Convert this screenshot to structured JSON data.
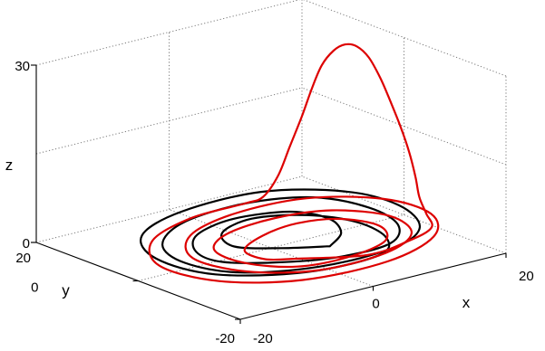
{
  "chart_data": {
    "type": "line",
    "projection": "3d",
    "title": "",
    "xlabel": "x",
    "ylabel": "y",
    "zlabel": "z",
    "xlim": [
      -20,
      20
    ],
    "ylim": [
      -20,
      20
    ],
    "zlim": [
      0,
      30
    ],
    "x_ticks": [
      "-20",
      "0",
      "20"
    ],
    "y_ticks": [
      "-20",
      "0",
      "20"
    ],
    "z_ticks": [
      "0",
      "30"
    ],
    "grid": true,
    "colors": {
      "series_a": "#000000",
      "series_b": "#dd0000"
    },
    "series": [
      {
        "points": [
          [
            5,
            -5,
            0.5
          ],
          [
            9,
            -2,
            0.7
          ],
          [
            11,
            3,
            0.9
          ],
          [
            9,
            8,
            1.0
          ],
          [
            2,
            10,
            1.1
          ],
          [
            -5,
            8,
            1.0
          ],
          [
            -9,
            3,
            0.9
          ],
          [
            -9,
            -2,
            0.8
          ],
          [
            -4,
            -6,
            0.6
          ],
          [
            3,
            -9,
            0.5
          ],
          [
            11,
            -9,
            0.6
          ],
          [
            16,
            -4,
            0.8
          ],
          [
            17,
            3,
            1.1
          ],
          [
            14,
            10,
            1.4
          ],
          [
            6,
            13,
            1.6
          ],
          [
            -4,
            12,
            1.5
          ],
          [
            -11,
            7,
            1.3
          ],
          [
            -13,
            0,
            1.1
          ],
          [
            -10,
            -7,
            0.9
          ],
          [
            -1,
            -11,
            0.7
          ],
          [
            10,
            -11,
            0.8
          ],
          [
            17,
            -7,
            1.0
          ],
          [
            20,
            1,
            1.3
          ],
          [
            18,
            9,
            1.6
          ],
          [
            10,
            15,
            1.8
          ],
          [
            -2,
            15,
            1.8
          ],
          [
            -11,
            11,
            1.6
          ],
          [
            -15,
            3,
            1.4
          ],
          [
            -13,
            -6,
            1.1
          ],
          [
            -4,
            -12,
            0.9
          ],
          [
            7,
            -12,
            0.7
          ],
          [
            12,
            -7,
            0.6
          ],
          [
            13,
            0,
            0.7
          ],
          [
            10,
            6,
            0.8
          ],
          [
            4,
            9,
            0.9
          ],
          [
            -2,
            7,
            0.8
          ],
          [
            -4,
            2,
            0.7
          ],
          [
            0,
            -2,
            0.6
          ],
          [
            5,
            -5,
            0.5
          ]
        ]
      },
      {
        "points": [
          [
            -1,
            -6,
            0.4
          ],
          [
            -4,
            -4,
            0.5
          ],
          [
            -4,
            0,
            0.7
          ],
          [
            1,
            3,
            0.8
          ],
          [
            7,
            4,
            0.9
          ],
          [
            12,
            2,
            0.9
          ],
          [
            14,
            -3,
            0.8
          ],
          [
            11,
            -8,
            0.7
          ],
          [
            4,
            -10,
            0.6
          ],
          [
            -3,
            -9,
            0.6
          ],
          [
            -7,
            -4,
            0.7
          ],
          [
            -7,
            2,
            0.9
          ],
          [
            -2,
            6,
            1.0
          ],
          [
            6,
            7,
            1.1
          ],
          [
            13,
            5,
            1.1
          ],
          [
            17,
            -1,
            1.0
          ],
          [
            15,
            -8,
            0.9
          ],
          [
            8,
            -12,
            0.8
          ],
          [
            -2,
            -12,
            0.7
          ],
          [
            -9,
            -7,
            0.8
          ],
          [
            -11,
            1,
            1.0
          ],
          [
            -6,
            8,
            1.2
          ],
          [
            3,
            11,
            1.4
          ],
          [
            13,
            10,
            1.5
          ],
          [
            20,
            4,
            1.4
          ],
          [
            21,
            -4,
            1.2
          ],
          [
            16,
            -11,
            1.0
          ],
          [
            6,
            -15,
            0.9
          ],
          [
            -6,
            -14,
            0.8
          ],
          [
            -14,
            -8,
            0.9
          ],
          [
            -16,
            1,
            1.1
          ],
          [
            -11,
            9,
            1.3
          ],
          [
            -2,
            13,
            1.4
          ],
          [
            6,
            13,
            1.6
          ],
          [
            8,
            12,
            2.5
          ],
          [
            9.5,
            11,
            6
          ],
          [
            10.5,
            10,
            11
          ],
          [
            11.5,
            9,
            16
          ],
          [
            12.3,
            8,
            21
          ],
          [
            13,
            7,
            25
          ],
          [
            14,
            6,
            27.5
          ],
          [
            15,
            5,
            28.6
          ],
          [
            16,
            4,
            28.3
          ],
          [
            17,
            3,
            26.5
          ],
          [
            18,
            2,
            23
          ],
          [
            18.8,
            1,
            19
          ],
          [
            19.5,
            0,
            15
          ],
          [
            20,
            -1,
            11
          ],
          [
            20.2,
            -2,
            7
          ],
          [
            20,
            -3,
            4
          ],
          [
            19.5,
            -5,
            2
          ],
          [
            18,
            -8,
            1
          ],
          [
            13,
            -10,
            0.8
          ],
          [
            6,
            -11,
            0.7
          ],
          [
            -1,
            -6,
            0.4
          ]
        ]
      }
    ]
  }
}
